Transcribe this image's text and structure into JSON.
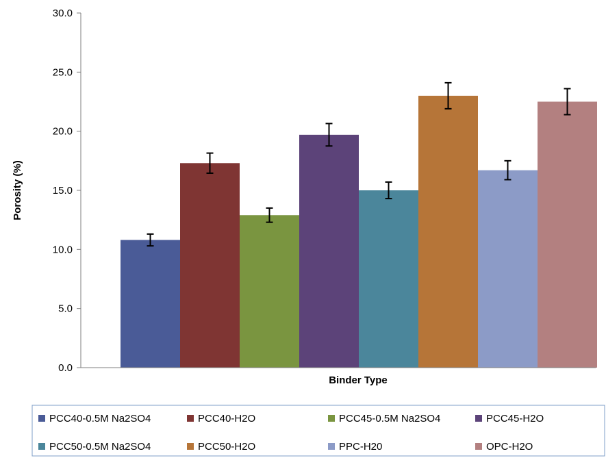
{
  "chart_data": {
    "type": "bar",
    "title": "",
    "xlabel": "Binder Type",
    "ylabel": "Porosity (%)",
    "ylim": [
      0,
      30
    ],
    "yticks": [
      "0.0",
      "5.0",
      "10.0",
      "15.0",
      "20.0",
      "25.0",
      "30.0"
    ],
    "grid": false,
    "legend_position": "bottom",
    "series": [
      {
        "name": "PCC40-0.5M Na2SO4",
        "value": 10.8,
        "error": 0.5,
        "color": "#4a5b97"
      },
      {
        "name": "PCC40-H2O",
        "value": 17.3,
        "error": 0.85,
        "color": "#7f3533"
      },
      {
        "name": "PCC45-0.5M Na2SO4",
        "value": 12.9,
        "error": 0.6,
        "color": "#7a9540"
      },
      {
        "name": "PCC45-H2O",
        "value": 19.7,
        "error": 0.95,
        "color": "#5c4379"
      },
      {
        "name": "PCC50-0.5M Na2SO4",
        "value": 15.0,
        "error": 0.7,
        "color": "#4b869b"
      },
      {
        "name": "PCC50-H2O",
        "value": 23.0,
        "error": 1.1,
        "color": "#b67538"
      },
      {
        "name": "PPC-H20",
        "value": 16.7,
        "error": 0.8,
        "color": "#8c9bc7"
      },
      {
        "name": "OPC-H2O",
        "value": 22.5,
        "error": 1.1,
        "color": "#b38080"
      }
    ]
  }
}
